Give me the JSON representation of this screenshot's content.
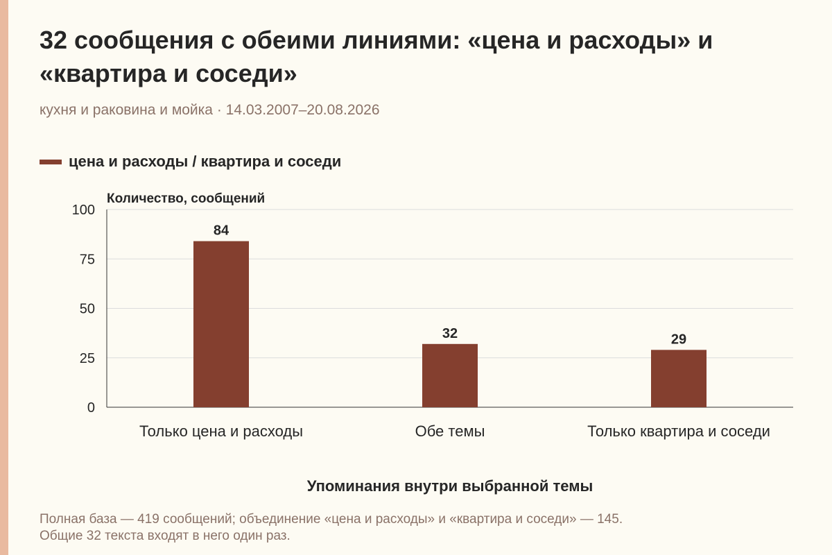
{
  "colors": {
    "accent": "#e9baa0",
    "bar": "#843f2f",
    "text": "#262626",
    "muted": "#8a7268",
    "grid": "#dcdcdc",
    "background": "#fdfbf3"
  },
  "title": "32 сообщения с обеими линиями: «цена и расходы» и «квартира и соседи»",
  "subtitle": "кухня и раковина и мойка · 14.03.2007–20.08.2026",
  "legend": {
    "label": "цена и расходы / квартира и соседи"
  },
  "chart_data": {
    "type": "bar",
    "ylabel": "Количество, сообщений",
    "xlabel": "Упоминания внутри выбранной темы",
    "ylim": [
      0,
      100
    ],
    "yticks": [
      "0",
      "25",
      "50",
      "75",
      "100"
    ],
    "categories": [
      "Только цена и расходы",
      "Обе темы",
      "Только квартира и соседи"
    ],
    "series": [
      {
        "name": "цена и расходы / квартира и соседи",
        "values": [
          84,
          32,
          29
        ]
      }
    ],
    "data_labels": [
      "84",
      "32",
      "29"
    ],
    "grid": true,
    "legend_position": "top-left"
  },
  "note": {
    "line1": "Полная база — 419 сообщений; объединение «цена и расходы» и «квартира и соседи» — 145.",
    "line2": "Общие 32 текста входят в него один раз."
  }
}
